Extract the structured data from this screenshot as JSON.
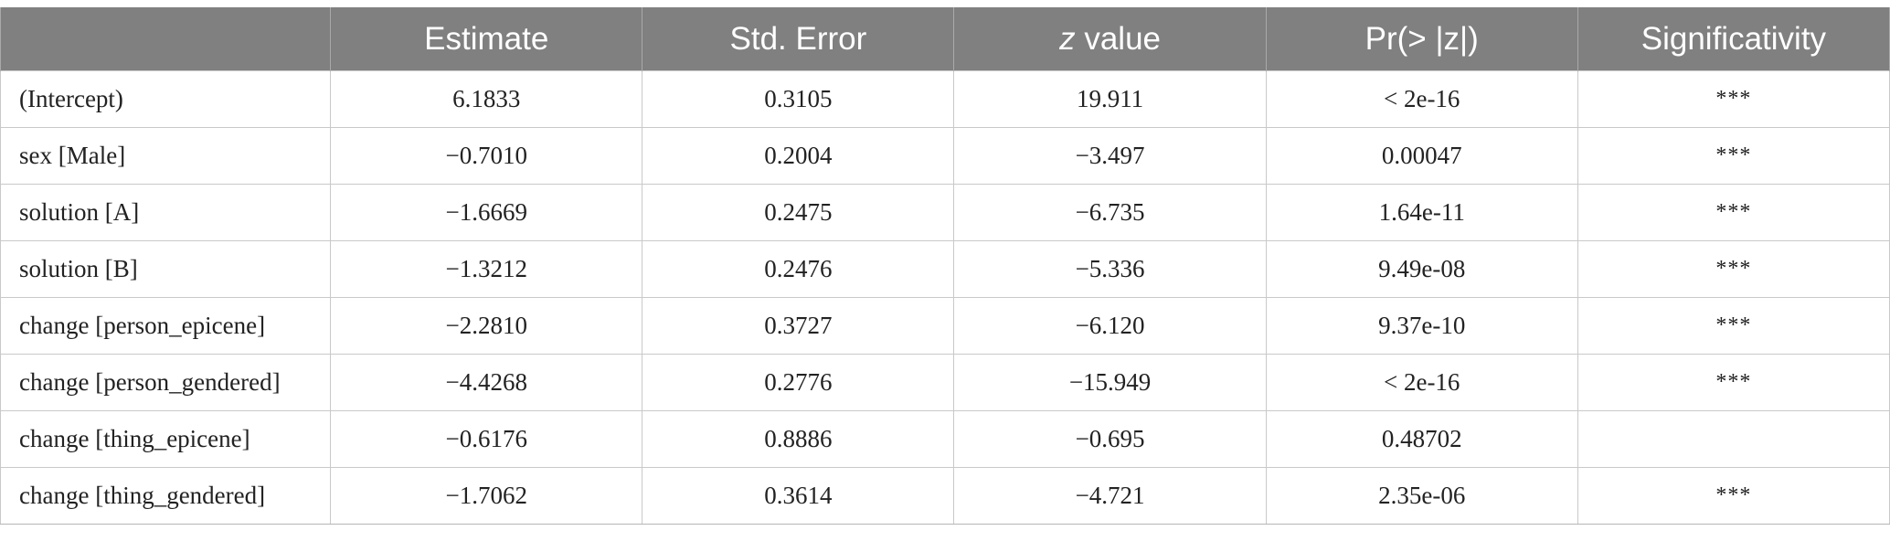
{
  "table": {
    "headers": {
      "blank": "",
      "estimate": "Estimate",
      "std_error": "Std. Error",
      "z_italic": "z",
      "z_rest": " value",
      "pr": "Pr(> |z|)",
      "significativity": "Significativity"
    },
    "rows": [
      {
        "term": "(Intercept)",
        "estimate": "6.1833",
        "std_error": "0.3105",
        "z": "19.911",
        "p": "< 2e-16",
        "sig": "***"
      },
      {
        "term": "sex [Male]",
        "estimate": "−0.7010",
        "std_error": "0.2004",
        "z": "−3.497",
        "p": "0.00047",
        "sig": "***"
      },
      {
        "term": "solution [A]",
        "estimate": "−1.6669",
        "std_error": "0.2475",
        "z": "−6.735",
        "p": "1.64e-11",
        "sig": "***"
      },
      {
        "term": "solution [B]",
        "estimate": "−1.3212",
        "std_error": "0.2476",
        "z": "−5.336",
        "p": "9.49e-08",
        "sig": "***"
      },
      {
        "term": "change [person_epicene]",
        "estimate": "−2.2810",
        "std_error": "0.3727",
        "z": "−6.120",
        "p": "9.37e-10",
        "sig": "***"
      },
      {
        "term": "change [person_gendered]",
        "estimate": "−4.4268",
        "std_error": "0.2776",
        "z": "−15.949",
        "p": "< 2e-16",
        "sig": "***"
      },
      {
        "term": "change [thing_epicene]",
        "estimate": "−0.6176",
        "std_error": "0.8886",
        "z": "−0.695",
        "p": "0.48702",
        "sig": ""
      },
      {
        "term": "change [thing_gendered]",
        "estimate": "−1.7062",
        "std_error": "0.3614",
        "z": "−4.721",
        "p": "2.35e-06",
        "sig": "***"
      }
    ]
  }
}
